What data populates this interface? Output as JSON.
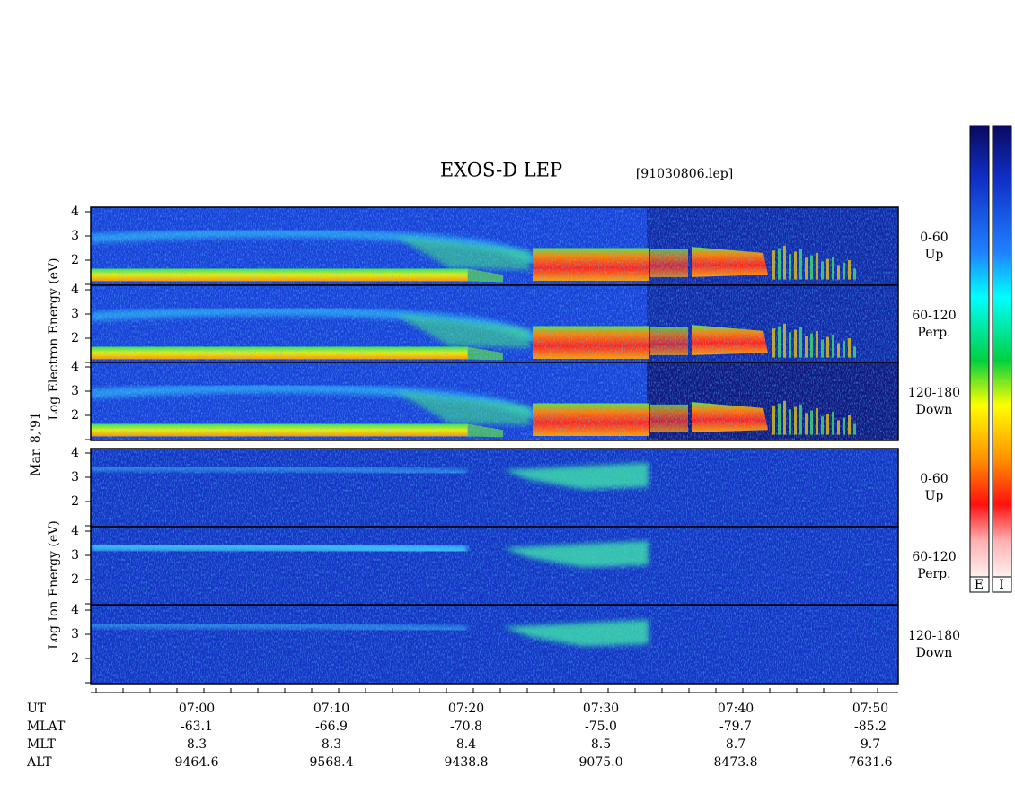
{
  "title": "EXOS-D LEP",
  "file": "[91030806.lep]",
  "date": "Mar. 8,'91",
  "electron_axis_label": "Log Electron Energy (eV)",
  "ion_axis_label": "Log Ion Energy (eV)",
  "panels": [
    {
      "yticks": [
        "4",
        "3",
        "2"
      ],
      "label": [
        "0-60",
        "Up"
      ]
    },
    {
      "yticks": [
        "4",
        "3",
        "2"
      ],
      "label": [
        "60-120",
        "Perp."
      ]
    },
    {
      "yticks": [
        "4",
        "3",
        "2"
      ],
      "label": [
        "120-180",
        "Down"
      ]
    },
    {
      "yticks": [
        "4",
        "3",
        "2"
      ],
      "label": [
        "0-60",
        "Up"
      ]
    },
    {
      "yticks": [
        "4",
        "3",
        "2"
      ],
      "label": [
        "60-120",
        "Perp."
      ]
    },
    {
      "yticks": [
        "4",
        "3",
        "2"
      ],
      "label": [
        "120-180",
        "Down"
      ]
    }
  ],
  "colorbar_labels": [
    "E",
    "I"
  ],
  "axis_rows": [
    {
      "name": "UT",
      "values": [
        "07:00",
        "07:10",
        "07:20",
        "07:30",
        "07:40",
        "07:50"
      ]
    },
    {
      "name": "MLAT",
      "values": [
        "-63.1",
        "-66.9",
        "-70.8",
        "-75.0",
        "-79.7",
        "-85.2"
      ]
    },
    {
      "name": "MLT",
      "values": [
        "8.3",
        "8.3",
        "8.4",
        "8.5",
        "8.7",
        "9.7"
      ]
    },
    {
      "name": "ALT",
      "values": [
        "9464.6",
        "9568.4",
        "9438.8",
        "9075.0",
        "8473.8",
        "7631.6"
      ]
    }
  ]
}
